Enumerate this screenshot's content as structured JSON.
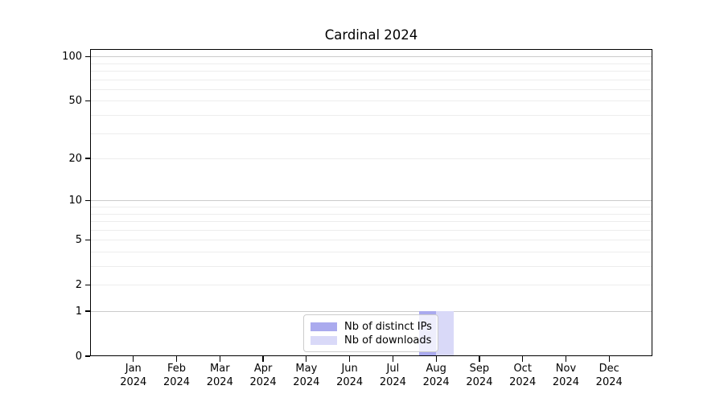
{
  "chart_data": {
    "type": "bar",
    "title": "Cardinal 2024",
    "categories": [
      "Jan 2024",
      "Feb 2024",
      "Mar 2024",
      "Apr 2024",
      "May 2024",
      "Jun 2024",
      "Jul 2024",
      "Aug 2024",
      "Sep 2024",
      "Oct 2024",
      "Nov 2024",
      "Dec 2024"
    ],
    "series": [
      {
        "name": "Nb of distinct IPs",
        "color": "#aaaaee",
        "values": [
          0,
          0,
          0,
          0,
          0,
          0,
          0,
          1,
          0,
          0,
          0,
          0
        ]
      },
      {
        "name": "Nb of downloads",
        "color": "#d9d9f8",
        "values": [
          0,
          0,
          0,
          0,
          0,
          0,
          0,
          1,
          0,
          0,
          0,
          0
        ]
      }
    ],
    "xlabel": "",
    "ylabel": "",
    "y_axis": {
      "scale": "log1p",
      "ylim": [
        0,
        112
      ],
      "tick_labels": [
        "0",
        "1",
        "2",
        "5",
        "10",
        "20",
        "50",
        "100"
      ],
      "tick_values": [
        0,
        1,
        2,
        5,
        10,
        20,
        50,
        100
      ],
      "major_gridlines": [
        1,
        10,
        100
      ],
      "minor_gridlines": [
        2,
        3,
        4,
        5,
        6,
        7,
        8,
        9,
        20,
        30,
        40,
        50,
        60,
        70,
        80,
        90
      ]
    },
    "grid": true,
    "legend_position": "lower center (inside plot)"
  },
  "colors": {
    "bar_distinct_ips": "#aaaaee",
    "bar_downloads": "#d9d9f8",
    "major_gridline": "#cbcbcb",
    "minor_gridline": "#ededed",
    "axis_line": "#000000",
    "legend_border": "#cccccc",
    "text": "#000000"
  }
}
